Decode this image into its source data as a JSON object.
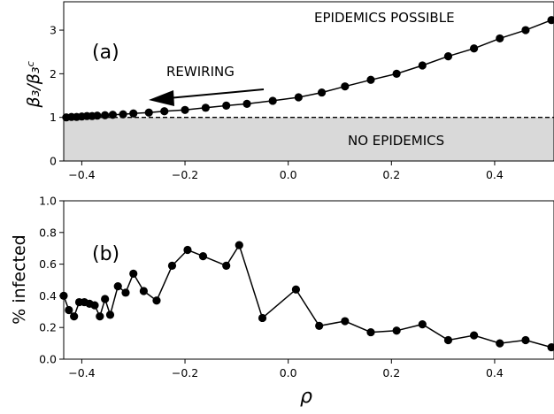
{
  "chart_data": [
    {
      "type": "line",
      "panel_label": "(a)",
      "ylabel": "β₃/β₃ᶜ",
      "xlim": [
        -0.435,
        0.515
      ],
      "ylim": [
        0,
        3.65
      ],
      "xticks": [
        -0.4,
        -0.2,
        0.0,
        0.2,
        0.4
      ],
      "xtick_labels": [
        "−0.4",
        "−0.2",
        "0.0",
        "0.2",
        "0.4"
      ],
      "yticks": [
        0,
        1,
        2,
        3
      ],
      "ytick_labels": [
        "0",
        "1",
        "2",
        "3"
      ],
      "threshold": 1.0,
      "annotations": {
        "top_right": "EPIDEMICS POSSIBLE",
        "shaded_region": "NO EPIDEMICS",
        "arrow": "REWIRING"
      },
      "x": [
        -0.43,
        -0.42,
        -0.41,
        -0.4,
        -0.39,
        -0.38,
        -0.37,
        -0.355,
        -0.34,
        -0.32,
        -0.3,
        -0.27,
        -0.24,
        -0.2,
        -0.16,
        -0.12,
        -0.08,
        -0.03,
        0.02,
        0.065,
        0.11,
        0.16,
        0.21,
        0.26,
        0.31,
        0.36,
        0.41,
        0.46,
        0.51
      ],
      "y": [
        1.0,
        1.01,
        1.01,
        1.02,
        1.03,
        1.03,
        1.04,
        1.05,
        1.06,
        1.07,
        1.09,
        1.11,
        1.14,
        1.17,
        1.22,
        1.27,
        1.31,
        1.38,
        1.46,
        1.57,
        1.71,
        1.86,
        2.0,
        2.19,
        2.4,
        2.58,
        2.81,
        3.0,
        3.23
      ]
    },
    {
      "type": "line",
      "panel_label": "(b)",
      "xlabel": "ρ",
      "ylabel": "% infected",
      "xlim": [
        -0.435,
        0.515
      ],
      "ylim": [
        0,
        1.0
      ],
      "xticks": [
        -0.4,
        -0.2,
        0.0,
        0.2,
        0.4
      ],
      "xtick_labels": [
        "−0.4",
        "−0.2",
        "0.0",
        "0.2",
        "0.4"
      ],
      "yticks": [
        0.0,
        0.2,
        0.4,
        0.6,
        0.8,
        1.0
      ],
      "ytick_labels": [
        "0.0",
        "0.2",
        "0.4",
        "0.6",
        "0.8",
        "1.0"
      ],
      "x": [
        -0.435,
        -0.425,
        -0.415,
        -0.405,
        -0.395,
        -0.385,
        -0.375,
        -0.365,
        -0.355,
        -0.345,
        -0.33,
        -0.315,
        -0.3,
        -0.28,
        -0.255,
        -0.225,
        -0.195,
        -0.165,
        -0.12,
        -0.095,
        -0.05,
        0.015,
        0.06,
        0.11,
        0.16,
        0.21,
        0.26,
        0.31,
        0.36,
        0.41,
        0.46,
        0.51
      ],
      "y": [
        0.4,
        0.31,
        0.27,
        0.36,
        0.36,
        0.35,
        0.34,
        0.27,
        0.38,
        0.28,
        0.46,
        0.42,
        0.54,
        0.43,
        0.37,
        0.59,
        0.69,
        0.65,
        0.59,
        0.72,
        0.26,
        0.44,
        0.21,
        0.24,
        0.17,
        0.18,
        0.22,
        0.12,
        0.15,
        0.1,
        0.12,
        0.075
      ]
    }
  ]
}
